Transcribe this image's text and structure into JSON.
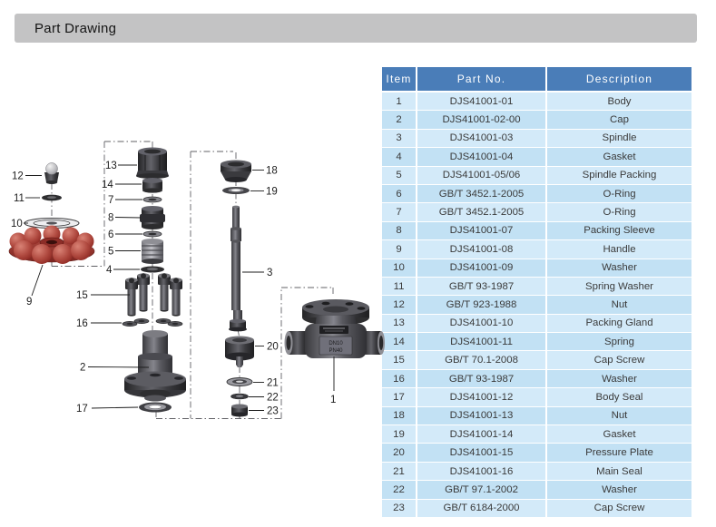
{
  "page": {
    "title": "Part Drawing"
  },
  "colors": {
    "title_bar": "#c3c3c4",
    "table_header_blue": "#4a7db8",
    "row_light_blue": "#d3eaf9",
    "row_alt_blue": "#c2e1f4",
    "handle_red": "#a23c34"
  },
  "table": {
    "headers": [
      "Item",
      "Part No.",
      "Description"
    ],
    "rows": [
      {
        "item": "1",
        "part_no": "DJS41001-01",
        "description": "Body"
      },
      {
        "item": "2",
        "part_no": "DJS41001-02-00",
        "description": "Cap"
      },
      {
        "item": "3",
        "part_no": "DJS41001-03",
        "description": "Spindle"
      },
      {
        "item": "4",
        "part_no": "DJS41001-04",
        "description": "Gasket"
      },
      {
        "item": "5",
        "part_no": "DJS41001-05/06",
        "description": "Spindle Packing"
      },
      {
        "item": "6",
        "part_no": "GB/T 3452.1-2005",
        "description": "O-Ring"
      },
      {
        "item": "7",
        "part_no": "GB/T 3452.1-2005",
        "description": "O-Ring"
      },
      {
        "item": "8",
        "part_no": "DJS41001-07",
        "description": "Packing Sleeve"
      },
      {
        "item": "9",
        "part_no": "DJS41001-08",
        "description": "Handle"
      },
      {
        "item": "10",
        "part_no": "DJS41001-09",
        "description": "Washer"
      },
      {
        "item": "11",
        "part_no": "GB/T 93-1987",
        "description": "Spring Washer"
      },
      {
        "item": "12",
        "part_no": "GB/T 923-1988",
        "description": "Nut"
      },
      {
        "item": "13",
        "part_no": "DJS41001-10",
        "description": "Packing Gland"
      },
      {
        "item": "14",
        "part_no": "DJS41001-11",
        "description": "Spring"
      },
      {
        "item": "15",
        "part_no": "GB/T 70.1-2008",
        "description": "Cap Screw"
      },
      {
        "item": "16",
        "part_no": "GB/T 93-1987",
        "description": "Washer"
      },
      {
        "item": "17",
        "part_no": "DJS41001-12",
        "description": "Body Seal"
      },
      {
        "item": "18",
        "part_no": "DJS41001-13",
        "description": "Nut"
      },
      {
        "item": "19",
        "part_no": "DJS41001-14",
        "description": "Gasket"
      },
      {
        "item": "20",
        "part_no": "DJS41001-15",
        "description": "Pressure Plate"
      },
      {
        "item": "21",
        "part_no": "DJS41001-16",
        "description": "Main Seal"
      },
      {
        "item": "22",
        "part_no": "GB/T 97.1-2002",
        "description": "Washer"
      },
      {
        "item": "23",
        "part_no": "GB/T 6184-2000",
        "description": "Cap Screw"
      }
    ]
  },
  "drawing": {
    "callouts": {
      "n1": "1",
      "n2": "2",
      "n3": "3",
      "n4": "4",
      "n5": "5",
      "n6": "6",
      "n7": "7",
      "n8": "8",
      "n9": "9",
      "n10": "10",
      "n11": "11",
      "n12": "12",
      "n13": "13",
      "n14": "14",
      "n15": "15",
      "n16": "16",
      "n17": "17",
      "n18": "18",
      "n19": "19",
      "n20": "20",
      "n21": "21",
      "n22": "22",
      "n23": "23"
    },
    "nameplate": {
      "line1": "DN10",
      "line2": "PN40"
    }
  }
}
